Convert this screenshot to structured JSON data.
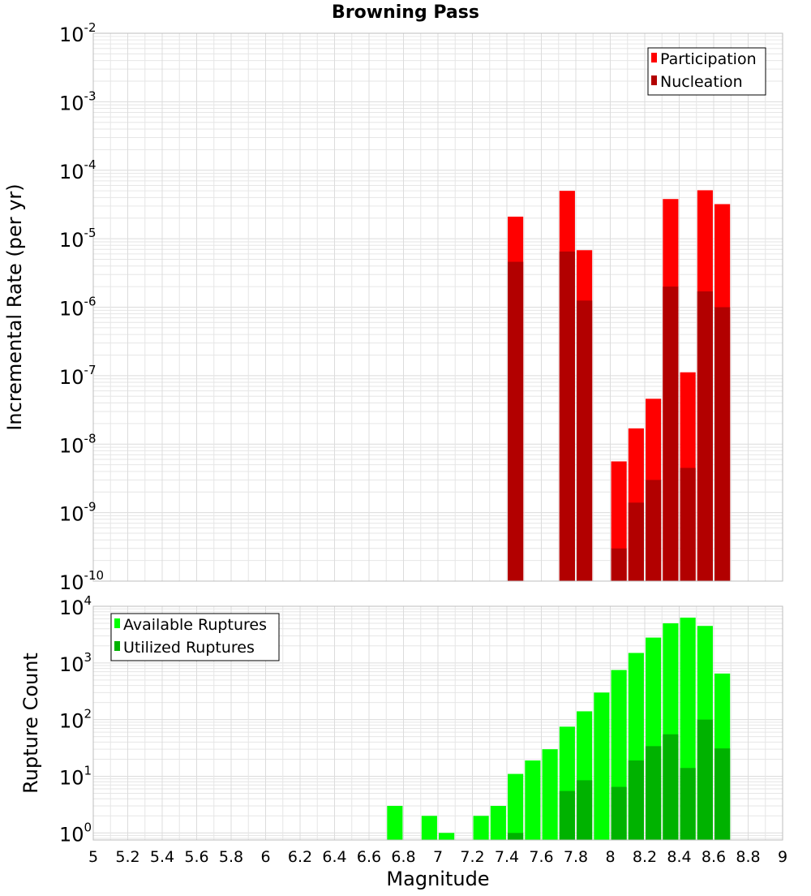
{
  "colors": {
    "participation": "#ff0000",
    "nucleation": "#b20000",
    "available": "#00ff00",
    "utilized": "#00b200",
    "grid": "#e6e6e6",
    "frame": "#bdbdbd"
  },
  "chart_data": [
    {
      "id": "rate",
      "type": "bar",
      "title": "Browning Pass",
      "xlabel": "",
      "ylabel": "Incremental Rate (per yr)",
      "yscale": "log",
      "ylim": [
        1e-10,
        0.01
      ],
      "xlim": [
        5,
        9
      ],
      "bar_width": 0.09,
      "y_ticks": [
        {
          "base": "10",
          "exp": "-10",
          "value": 1e-10
        },
        {
          "base": "10",
          "exp": "-9",
          "value": 1e-09
        },
        {
          "base": "10",
          "exp": "-8",
          "value": 1e-08
        },
        {
          "base": "10",
          "exp": "-7",
          "value": 1e-07
        },
        {
          "base": "10",
          "exp": "-6",
          "value": 1e-06
        },
        {
          "base": "10",
          "exp": "-5",
          "value": 1e-05
        },
        {
          "base": "10",
          "exp": "-4",
          "value": 0.0001
        },
        {
          "base": "10",
          "exp": "-3",
          "value": 0.001
        },
        {
          "base": "10",
          "exp": "-2",
          "value": 0.01
        }
      ],
      "legend_position": "top-right",
      "series": [
        {
          "name": "Participation",
          "color_key": "participation",
          "points": [
            {
              "x": 7.45,
              "y": 2.1e-05
            },
            {
              "x": 7.75,
              "y": 5e-05
            },
            {
              "x": 7.85,
              "y": 6.8e-06
            },
            {
              "x": 8.05,
              "y": 5.6e-09
            },
            {
              "x": 8.15,
              "y": 1.7e-08
            },
            {
              "x": 8.25,
              "y": 4.6e-08
            },
            {
              "x": 8.35,
              "y": 3.8e-05
            },
            {
              "x": 8.45,
              "y": 1.12e-07
            },
            {
              "x": 8.55,
              "y": 5.1e-05
            },
            {
              "x": 8.65,
              "y": 3.2e-05
            }
          ]
        },
        {
          "name": "Nucleation",
          "color_key": "nucleation",
          "points": [
            {
              "x": 7.45,
              "y": 4.6e-06
            },
            {
              "x": 7.75,
              "y": 6.5e-06
            },
            {
              "x": 7.85,
              "y": 1.25e-06
            },
            {
              "x": 8.05,
              "y": 3e-10
            },
            {
              "x": 8.15,
              "y": 1.4e-09
            },
            {
              "x": 8.25,
              "y": 3e-09
            },
            {
              "x": 8.35,
              "y": 2e-06
            },
            {
              "x": 8.45,
              "y": 4.5e-09
            },
            {
              "x": 8.55,
              "y": 1.7e-06
            },
            {
              "x": 8.65,
              "y": 1e-06
            }
          ]
        }
      ]
    },
    {
      "id": "count",
      "type": "bar",
      "title": "",
      "xlabel": "Magnitude",
      "ylabel": "Rupture Count",
      "yscale": "log",
      "ylim": [
        0.75,
        10000
      ],
      "xlim": [
        5,
        9
      ],
      "bar_width": 0.09,
      "y_ticks": [
        {
          "base": "10",
          "exp": "0",
          "value": 1
        },
        {
          "base": "10",
          "exp": "1",
          "value": 10
        },
        {
          "base": "10",
          "exp": "2",
          "value": 100
        },
        {
          "base": "10",
          "exp": "3",
          "value": 1000
        },
        {
          "base": "10",
          "exp": "4",
          "value": 10000
        }
      ],
      "x_ticks": [
        "5",
        "5.2",
        "5.4",
        "5.6",
        "5.8",
        "6",
        "6.2",
        "6.4",
        "6.6",
        "6.8",
        "7",
        "7.2",
        "7.4",
        "7.6",
        "7.8",
        "8",
        "8.2",
        "8.4",
        "8.6",
        "8.8",
        "9"
      ],
      "legend_position": "top-left",
      "series": [
        {
          "name": "Available Ruptures",
          "color_key": "available",
          "points": [
            {
              "x": 6.75,
              "y": 3
            },
            {
              "x": 6.95,
              "y": 2
            },
            {
              "x": 7.05,
              "y": 1
            },
            {
              "x": 7.25,
              "y": 2
            },
            {
              "x": 7.35,
              "y": 3
            },
            {
              "x": 7.45,
              "y": 11
            },
            {
              "x": 7.55,
              "y": 19
            },
            {
              "x": 7.65,
              "y": 30
            },
            {
              "x": 7.75,
              "y": 75
            },
            {
              "x": 7.85,
              "y": 140
            },
            {
              "x": 7.95,
              "y": 300
            },
            {
              "x": 8.05,
              "y": 750
            },
            {
              "x": 8.15,
              "y": 1500
            },
            {
              "x": 8.25,
              "y": 2800
            },
            {
              "x": 8.35,
              "y": 5000
            },
            {
              "x": 8.45,
              "y": 6300
            },
            {
              "x": 8.55,
              "y": 4500
            },
            {
              "x": 8.65,
              "y": 650
            }
          ]
        },
        {
          "name": "Utilized Ruptures",
          "color_key": "utilized",
          "points": [
            {
              "x": 7.45,
              "y": 1
            },
            {
              "x": 7.75,
              "y": 5.5
            },
            {
              "x": 7.85,
              "y": 8.5
            },
            {
              "x": 8.05,
              "y": 6.5
            },
            {
              "x": 8.15,
              "y": 19
            },
            {
              "x": 8.25,
              "y": 34
            },
            {
              "x": 8.35,
              "y": 55
            },
            {
              "x": 8.45,
              "y": 14
            },
            {
              "x": 8.55,
              "y": 100
            },
            {
              "x": 8.65,
              "y": 31
            }
          ]
        }
      ]
    }
  ]
}
